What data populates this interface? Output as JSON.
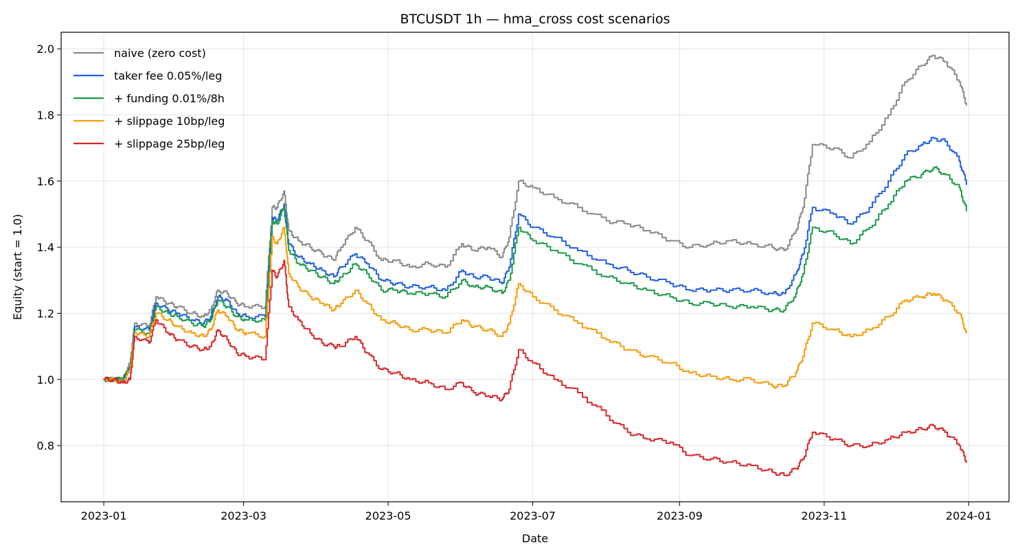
{
  "chart_data": {
    "type": "line",
    "title": "BTCUSDT 1h — hma_cross cost scenarios",
    "xlabel": "Date",
    "ylabel": "Equity (start = 1.0)",
    "xlim": [
      "2022-12-14",
      "2024-01-18"
    ],
    "ylim": [
      0.63,
      2.05
    ],
    "x_ticks": [
      "2023-01",
      "2023-03",
      "2023-05",
      "2023-07",
      "2023-09",
      "2023-11",
      "2024-01"
    ],
    "y_ticks": [
      0.8,
      1.0,
      1.2,
      1.4,
      1.6,
      1.8,
      2.0
    ],
    "grid": true,
    "legend_position": "top-left",
    "x": [
      "2023-01-01",
      "2023-01-05",
      "2023-01-09",
      "2023-01-12",
      "2023-01-14",
      "2023-01-20",
      "2023-01-23",
      "2023-01-28",
      "2023-02-01",
      "2023-02-07",
      "2023-02-12",
      "2023-02-15",
      "2023-02-18",
      "2023-02-22",
      "2023-02-26",
      "2023-03-02",
      "2023-03-10",
      "2023-03-13",
      "2023-03-15",
      "2023-03-18",
      "2023-03-20",
      "2023-03-24",
      "2023-03-29",
      "2023-04-03",
      "2023-04-08",
      "2023-04-11",
      "2023-04-17",
      "2023-04-22",
      "2023-04-28",
      "2023-05-04",
      "2023-05-10",
      "2023-05-18",
      "2023-05-25",
      "2023-06-01",
      "2023-06-06",
      "2023-06-12",
      "2023-06-18",
      "2023-06-21",
      "2023-06-25",
      "2023-07-01",
      "2023-07-10",
      "2023-07-20",
      "2023-08-01",
      "2023-08-10",
      "2023-08-18",
      "2023-08-28",
      "2023-09-05",
      "2023-09-14",
      "2023-09-22",
      "2023-10-01",
      "2023-10-10",
      "2023-10-15",
      "2023-10-20",
      "2023-10-23",
      "2023-10-27",
      "2023-11-05",
      "2023-11-12",
      "2023-11-20",
      "2023-11-28",
      "2023-12-05",
      "2023-12-12",
      "2023-12-17",
      "2023-12-22",
      "2023-12-28",
      "2023-12-31"
    ],
    "series": [
      {
        "name": "naive (zero cost)",
        "color": "#888888",
        "values": [
          1.0,
          1.0,
          1.0,
          1.05,
          1.17,
          1.16,
          1.25,
          1.23,
          1.22,
          1.2,
          1.19,
          1.21,
          1.27,
          1.26,
          1.23,
          1.22,
          1.22,
          1.52,
          1.52,
          1.57,
          1.45,
          1.42,
          1.4,
          1.38,
          1.36,
          1.4,
          1.46,
          1.42,
          1.36,
          1.36,
          1.34,
          1.35,
          1.34,
          1.41,
          1.39,
          1.4,
          1.37,
          1.43,
          1.6,
          1.58,
          1.55,
          1.52,
          1.48,
          1.47,
          1.45,
          1.42,
          1.4,
          1.41,
          1.42,
          1.41,
          1.4,
          1.39,
          1.45,
          1.52,
          1.71,
          1.7,
          1.67,
          1.72,
          1.8,
          1.9,
          1.95,
          1.98,
          1.96,
          1.9,
          1.83
        ]
      },
      {
        "name": "taker fee 0.05%/leg",
        "color": "#1f5fe0",
        "values": [
          1.0,
          1.0,
          1.0,
          1.04,
          1.16,
          1.15,
          1.23,
          1.21,
          1.2,
          1.18,
          1.17,
          1.19,
          1.25,
          1.24,
          1.2,
          1.19,
          1.19,
          1.49,
          1.48,
          1.53,
          1.41,
          1.37,
          1.35,
          1.33,
          1.31,
          1.34,
          1.38,
          1.35,
          1.3,
          1.29,
          1.28,
          1.28,
          1.27,
          1.33,
          1.31,
          1.31,
          1.29,
          1.34,
          1.5,
          1.46,
          1.43,
          1.39,
          1.35,
          1.33,
          1.31,
          1.29,
          1.27,
          1.27,
          1.27,
          1.27,
          1.26,
          1.26,
          1.32,
          1.38,
          1.52,
          1.5,
          1.47,
          1.52,
          1.6,
          1.68,
          1.71,
          1.73,
          1.72,
          1.66,
          1.59
        ]
      },
      {
        "name": "+ funding 0.01%/8h",
        "color": "#1a9a4a",
        "values": [
          1.0,
          1.0,
          1.0,
          1.04,
          1.15,
          1.14,
          1.22,
          1.2,
          1.19,
          1.17,
          1.16,
          1.18,
          1.24,
          1.22,
          1.19,
          1.18,
          1.18,
          1.48,
          1.47,
          1.52,
          1.39,
          1.35,
          1.33,
          1.31,
          1.29,
          1.31,
          1.35,
          1.32,
          1.27,
          1.27,
          1.26,
          1.26,
          1.25,
          1.3,
          1.28,
          1.28,
          1.26,
          1.3,
          1.46,
          1.42,
          1.39,
          1.35,
          1.31,
          1.29,
          1.27,
          1.25,
          1.23,
          1.23,
          1.22,
          1.22,
          1.21,
          1.21,
          1.26,
          1.32,
          1.46,
          1.44,
          1.41,
          1.46,
          1.53,
          1.6,
          1.62,
          1.64,
          1.62,
          1.58,
          1.51
        ]
      },
      {
        "name": "+ slippage 10bp/leg",
        "color": "#f59c0a",
        "values": [
          1.0,
          1.0,
          0.99,
          1.03,
          1.14,
          1.13,
          1.2,
          1.18,
          1.16,
          1.14,
          1.13,
          1.15,
          1.21,
          1.19,
          1.15,
          1.14,
          1.13,
          1.43,
          1.41,
          1.46,
          1.32,
          1.28,
          1.25,
          1.23,
          1.21,
          1.23,
          1.27,
          1.23,
          1.18,
          1.17,
          1.15,
          1.15,
          1.14,
          1.18,
          1.16,
          1.15,
          1.13,
          1.17,
          1.29,
          1.25,
          1.21,
          1.17,
          1.12,
          1.09,
          1.07,
          1.05,
          1.02,
          1.01,
          1.0,
          1.0,
          0.98,
          0.98,
          1.02,
          1.07,
          1.17,
          1.15,
          1.13,
          1.15,
          1.19,
          1.24,
          1.25,
          1.26,
          1.24,
          1.2,
          1.14
        ]
      },
      {
        "name": "+ slippage 25bp/leg",
        "color": "#d62728",
        "values": [
          1.0,
          1.0,
          0.99,
          1.0,
          1.13,
          1.11,
          1.18,
          1.14,
          1.12,
          1.1,
          1.09,
          1.1,
          1.15,
          1.12,
          1.08,
          1.07,
          1.06,
          1.33,
          1.31,
          1.36,
          1.22,
          1.18,
          1.14,
          1.11,
          1.1,
          1.1,
          1.13,
          1.08,
          1.03,
          1.02,
          1.0,
          0.99,
          0.97,
          0.99,
          0.96,
          0.95,
          0.94,
          0.97,
          1.09,
          1.05,
          1.0,
          0.96,
          0.89,
          0.84,
          0.82,
          0.81,
          0.77,
          0.76,
          0.75,
          0.74,
          0.72,
          0.71,
          0.73,
          0.76,
          0.84,
          0.82,
          0.8,
          0.8,
          0.82,
          0.84,
          0.85,
          0.86,
          0.84,
          0.8,
          0.75
        ]
      }
    ]
  }
}
